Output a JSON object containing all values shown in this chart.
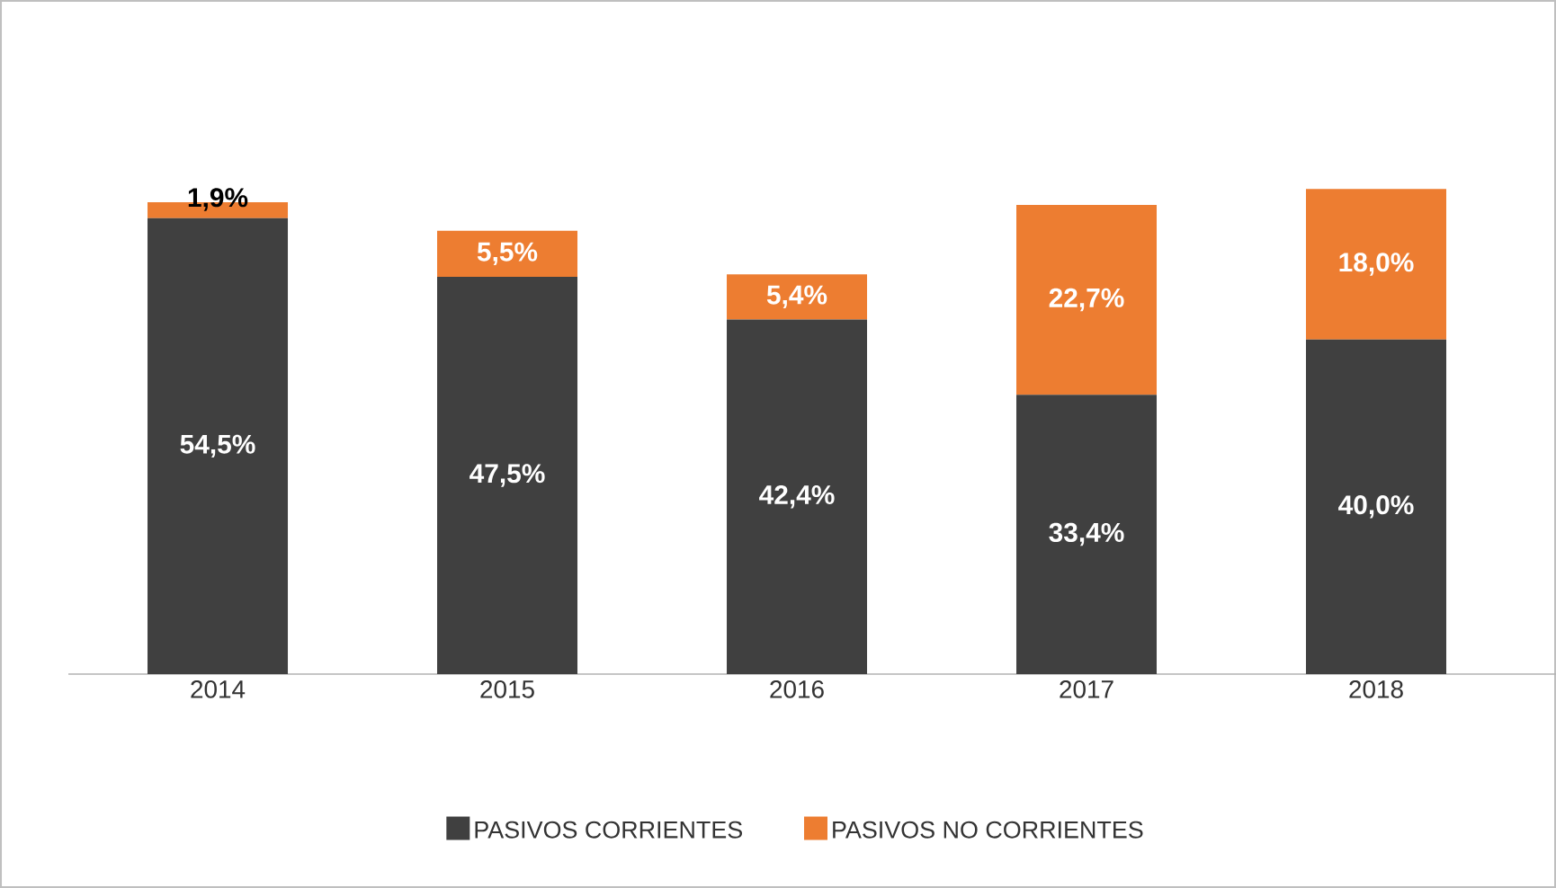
{
  "chart_data": {
    "type": "bar",
    "stacked": true,
    "categories": [
      "2014",
      "2015",
      "2016",
      "2017",
      "2018"
    ],
    "series": [
      {
        "name": "PASIVOS CORRIENTES",
        "color": "#404040",
        "values": [
          54.5,
          47.5,
          42.4,
          33.4,
          40.0
        ],
        "value_labels": [
          "54,5%",
          "47,5%",
          "42,4%",
          "33,4%",
          "40,0%"
        ]
      },
      {
        "name": "PASIVOS NO CORRIENTES",
        "color": "#ed7d31",
        "values": [
          1.9,
          5.5,
          5.4,
          22.7,
          18.0
        ],
        "value_labels": [
          "1,9%",
          "5,5%",
          "5,4%",
          "22,7%",
          "18,0%"
        ]
      }
    ],
    "legend": "bottom"
  }
}
